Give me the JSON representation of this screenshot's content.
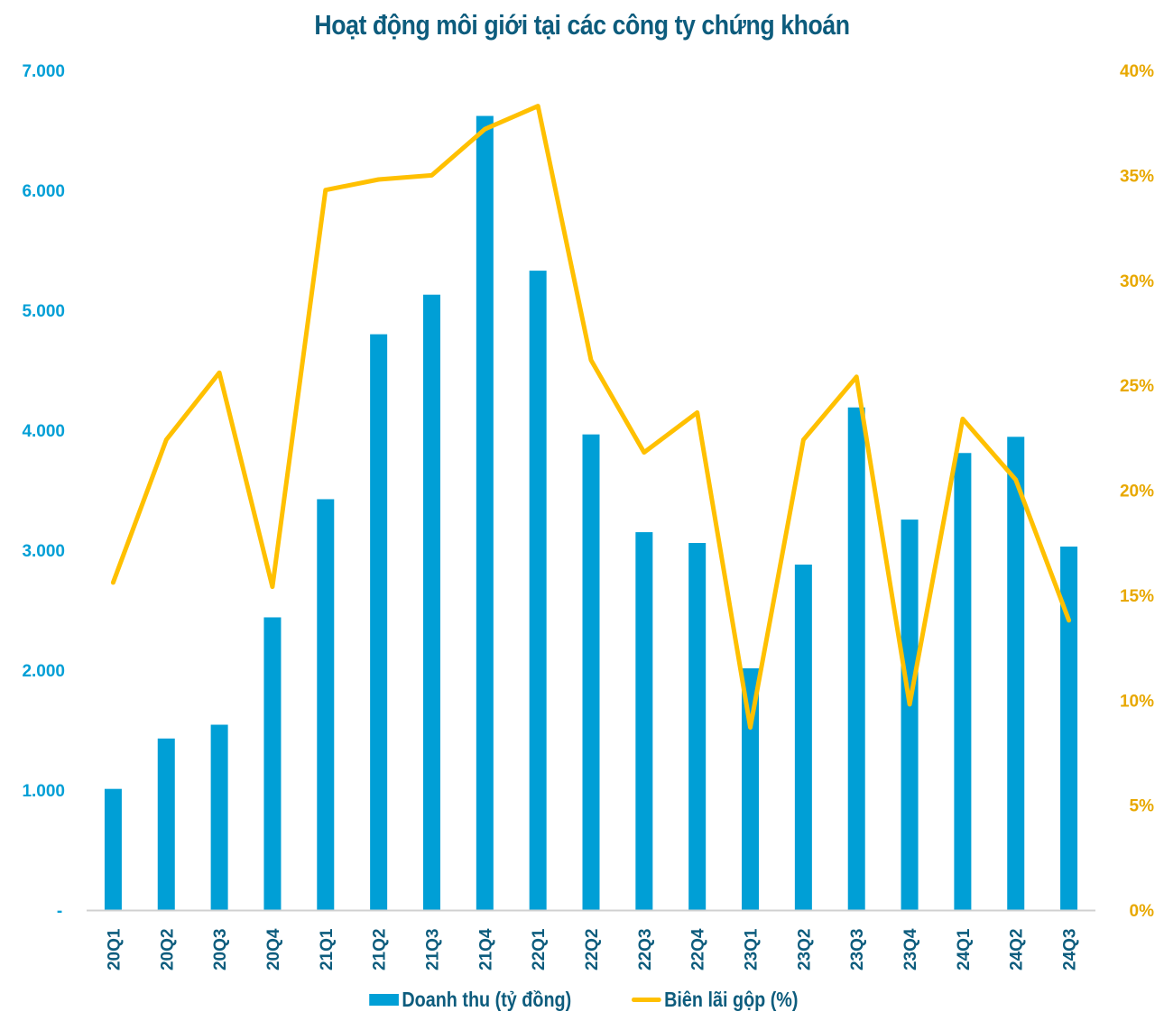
{
  "colors": {
    "title": "#0D5C7D",
    "bar": "#009FD6",
    "line": "#FFC000",
    "left_axis_text": "#009FD6",
    "right_axis_text": "#E8A800",
    "x_axis_text": "#0D5C7D",
    "legend_text": "#0D5C7D",
    "axis_line": "#D0D0D0"
  },
  "chart_data": {
    "type": "bar+line",
    "title": "Hoạt động môi giới tại các công ty chứng khoán",
    "categories": [
      "20Q1",
      "20Q2",
      "20Q3",
      "20Q4",
      "21Q1",
      "21Q2",
      "21Q3",
      "21Q4",
      "22Q1",
      "22Q2",
      "22Q3",
      "22Q4",
      "23Q1",
      "23Q2",
      "23Q3",
      "23Q4",
      "24Q1",
      "24Q2",
      "24Q3"
    ],
    "series": [
      {
        "name": "Doanh thu (tỷ đồng)",
        "type": "bar",
        "axis": "left",
        "values": [
          1010,
          1430,
          1545,
          2440,
          3425,
          4800,
          5130,
          6620,
          5330,
          3965,
          3150,
          3060,
          2015,
          2880,
          4190,
          3255,
          3810,
          3945,
          3030
        ]
      },
      {
        "name": "Biên lãi gộp (%)",
        "type": "line",
        "axis": "right",
        "values": [
          15.6,
          22.4,
          25.6,
          15.4,
          34.3,
          34.8,
          35.0,
          37.2,
          38.3,
          26.2,
          21.8,
          23.7,
          8.7,
          22.4,
          25.4,
          9.8,
          23.4,
          20.5,
          13.8
        ]
      }
    ],
    "y_left": {
      "label": "",
      "range": [
        0,
        7000
      ],
      "ticks": [
        0,
        1000,
        2000,
        3000,
        4000,
        5000,
        6000,
        7000
      ],
      "tick_labels": [
        "-",
        "1.000",
        "2.000",
        "3.000",
        "4.000",
        "5.000",
        "6.000",
        "7.000"
      ]
    },
    "y_right": {
      "label": "",
      "range": [
        0,
        40
      ],
      "ticks": [
        0,
        5,
        10,
        15,
        20,
        25,
        30,
        35,
        40
      ],
      "tick_labels": [
        "0%",
        "5%",
        "10%",
        "15%",
        "20%",
        "25%",
        "30%",
        "35%",
        "40%"
      ]
    },
    "xlabel": "",
    "grid": false,
    "legend_position": "bottom"
  }
}
